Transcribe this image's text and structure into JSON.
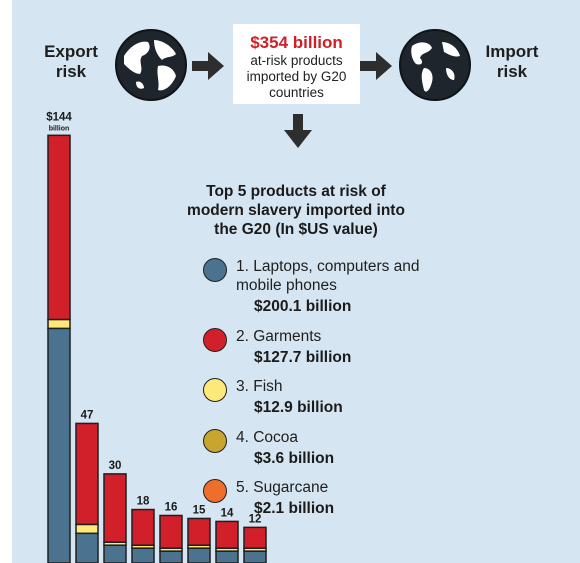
{
  "flow": {
    "export_label": "Export risk",
    "import_label": "Import risk",
    "total_value": "$354 billion",
    "total_desc": "at-risk products imported by G20 countries"
  },
  "legend": {
    "title": "Top 5 products at risk of modern slavery imported into the G20 (In $US value)",
    "items": [
      {
        "name": "1. Laptops, computers and mobile phones",
        "amount": "$200.1 billion",
        "color": "#4b7390"
      },
      {
        "name": "2. Garments",
        "amount": "$127.7 billion",
        "color": "#d1202a"
      },
      {
        "name": "3. Fish",
        "amount": "$12.9 billion",
        "color": "#fde97a"
      },
      {
        "name": "4. Cocoa",
        "amount": "$3.6 billion",
        "color": "#c7a52e"
      },
      {
        "name": "5. Sugarcane",
        "amount": "$2.1 billion",
        "color": "#ee6e2b"
      }
    ]
  },
  "chart_data": {
    "type": "bar",
    "stacked": true,
    "unit": "billion",
    "values": [
      144,
      47,
      30,
      18,
      16,
      15,
      14,
      12
    ],
    "labels": [
      "$144",
      "47",
      "30",
      "18",
      "16",
      "15",
      "14",
      "12"
    ],
    "series_colors": [
      "#4b7390",
      "#fde97a",
      "#d1202a"
    ],
    "stacks": [
      [
        79,
        3,
        62
      ],
      [
        10,
        3,
        34
      ],
      [
        6,
        1,
        23
      ],
      [
        5,
        1,
        12
      ],
      [
        4,
        1,
        11
      ],
      [
        5,
        1,
        9
      ],
      [
        4,
        1,
        9
      ],
      [
        4,
        1,
        7
      ]
    ]
  }
}
